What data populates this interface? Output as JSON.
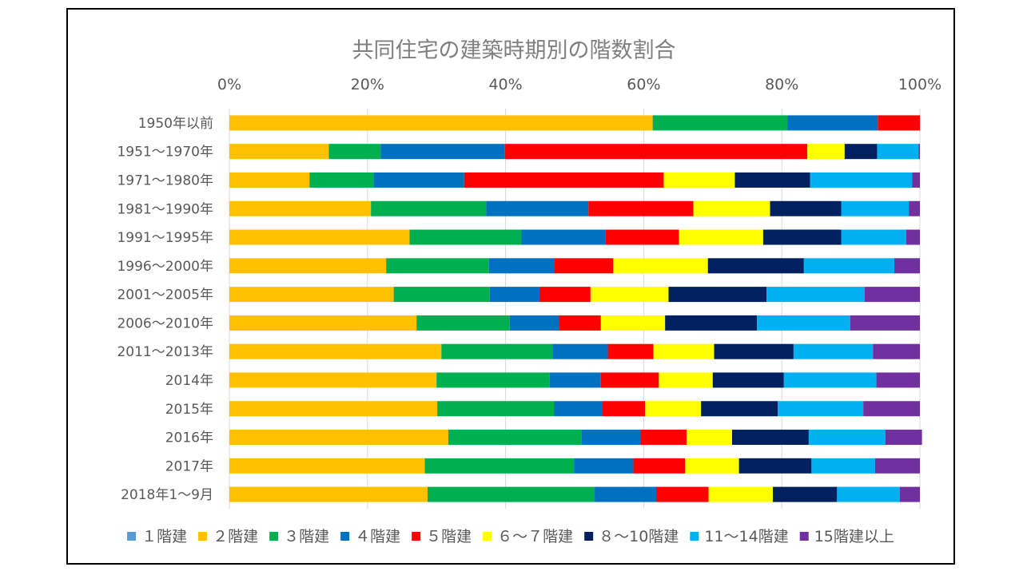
{
  "chart_data": {
    "type": "bar",
    "orientation": "horizontal",
    "stacked": "percent",
    "title": "共同住宅の建築時期別の階数割合",
    "x_ticks": [
      "0%",
      "20%",
      "40%",
      "60%",
      "80%",
      "100%"
    ],
    "xlim": [
      0,
      100
    ],
    "grid": true,
    "legend_position": "bottom",
    "categories": [
      "1950年以前",
      "1951～1970年",
      "1971～1980年",
      "1981～1990年",
      "1991～1995年",
      "1996～2000年",
      "2001～2005年",
      "2006～2010年",
      "2011～2013年",
      "2014年",
      "2015年",
      "2016年",
      "2017年",
      "2018年1～9月"
    ],
    "series": [
      {
        "name": "１階建",
        "color": "#5b9bd5",
        "values": [
          0,
          0,
          0,
          0,
          0,
          0,
          0,
          0,
          0,
          0,
          0,
          0,
          0,
          0
        ]
      },
      {
        "name": "２階建",
        "color": "#ffc000",
        "values": [
          61.3,
          14.4,
          11.6,
          20.5,
          26.1,
          22.7,
          23.8,
          27.1,
          30.7,
          30.0,
          30.1,
          31.7,
          28.3,
          28.7
        ]
      },
      {
        "name": "３階建",
        "color": "#00b050",
        "values": [
          19.5,
          7.5,
          9.3,
          16.7,
          16.2,
          14.9,
          13.9,
          13.5,
          16.1,
          16.4,
          16.9,
          19.3,
          21.6,
          24.2
        ]
      },
      {
        "name": "４階建",
        "color": "#0070c0",
        "values": [
          13.1,
          18.0,
          13.1,
          14.8,
          12.2,
          9.5,
          7.2,
          7.2,
          8.0,
          7.4,
          7.0,
          8.5,
          8.6,
          8.9
        ]
      },
      {
        "name": "５階建",
        "color": "#ff0000",
        "values": [
          6.1,
          43.8,
          28.9,
          15.2,
          10.6,
          8.5,
          7.4,
          6.0,
          6.6,
          8.4,
          6.2,
          6.7,
          7.5,
          7.6
        ]
      },
      {
        "name": "６～７階建",
        "color": "#ffff00",
        "values": [
          0,
          5.4,
          10.3,
          11.1,
          12.2,
          13.7,
          11.3,
          9.3,
          8.8,
          7.8,
          8.1,
          6.6,
          7.8,
          9.3
        ]
      },
      {
        "name": "８～10階建",
        "color": "#002060",
        "values": [
          0,
          4.7,
          10.9,
          10.3,
          11.3,
          13.9,
          14.2,
          13.3,
          11.5,
          10.3,
          11.1,
          11.1,
          10.5,
          9.3
        ]
      },
      {
        "name": "11～14階建",
        "color": "#00b0f0",
        "values": [
          0,
          6.0,
          14.8,
          9.8,
          9.4,
          13.1,
          14.2,
          13.5,
          11.5,
          13.4,
          12.4,
          11.1,
          9.2,
          9.1
        ]
      },
      {
        "name": "15階建以上",
        "color": "#7030a0",
        "values": [
          0,
          0.2,
          1.1,
          1.6,
          2.0,
          3.7,
          8.0,
          10.1,
          6.8,
          6.3,
          8.2,
          5.3,
          6.5,
          2.9
        ]
      }
    ]
  }
}
